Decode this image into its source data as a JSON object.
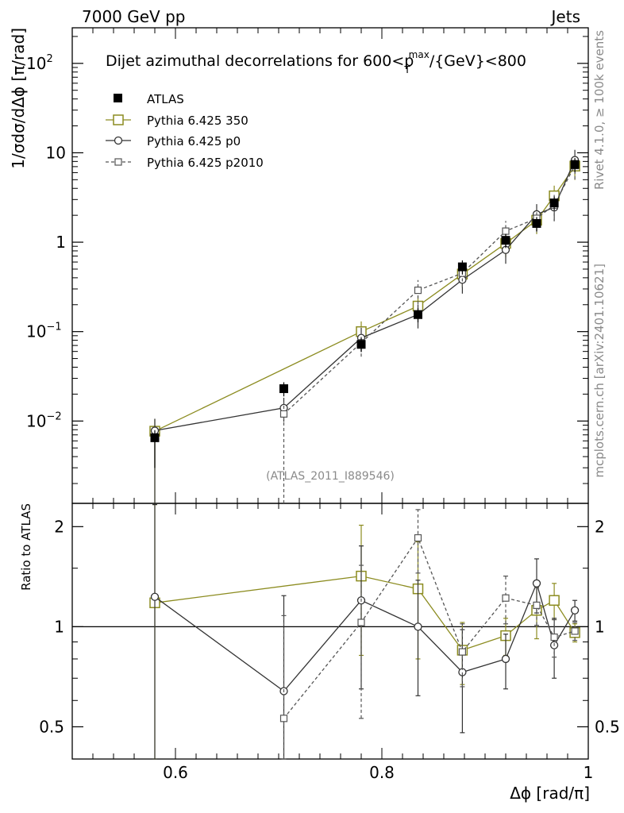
{
  "header": {
    "left": "7000 GeV pp",
    "right": "Jets"
  },
  "side_labels": {
    "rivet": "Rivet 4.1.0, ≥ 100k events",
    "mcplots": "mcplots.cern.ch [arXiv:2401.10621]"
  },
  "watermark": "(ATLAS_2011_I889546)",
  "chart_data": [
    {
      "type": "scatter",
      "panel": "main",
      "title": "Dijet azimuthal decorrelations for 600<p_T^max/{GeV}<800",
      "title_parts": {
        "pre": "Dijet azimuthal decorrelations for 600<p",
        "sub": "T",
        "sup": "max",
        "post": "/{GeV}<800"
      },
      "ylabel": "1/σdσ/dΔϕ [π/rad]",
      "yscale": "log",
      "ylim": [
        0.0012,
        250
      ],
      "xlim": [
        0.5,
        1.0
      ],
      "y_ticks": [
        {
          "value": 0.01,
          "label": "10",
          "exp": "−2"
        },
        {
          "value": 0.1,
          "label": "10",
          "exp": "−1"
        },
        {
          "value": 1,
          "label": "1",
          "exp": ""
        },
        {
          "value": 10,
          "label": "10",
          "exp": ""
        },
        {
          "value": 100,
          "label": "10",
          "exp": "2"
        }
      ],
      "x": [
        0.58,
        0.705,
        0.78,
        0.835,
        0.878,
        0.92,
        0.95,
        0.967,
        0.987
      ],
      "series": [
        {
          "name": "ATLAS",
          "style": "data",
          "color": "#000000",
          "values": [
            0.0065,
            0.023,
            0.072,
            0.155,
            0.53,
            1.05,
            1.62,
            2.75,
            7.4
          ]
        },
        {
          "name": "Pythia 6.425 350",
          "style": "square-solid",
          "color": "#8c8c20",
          "values": [
            0.0077,
            null,
            0.1,
            0.193,
            0.44,
            0.97,
            1.76,
            3.3,
            7.1
          ]
        },
        {
          "name": "Pythia 6.425 p0",
          "style": "circle-solid",
          "color": "#333333",
          "values": [
            0.0078,
            0.014,
            0.085,
            0.155,
            0.38,
            0.82,
            2.05,
            2.45,
            8.3
          ]
        },
        {
          "name": "Pythia 6.425 p2010",
          "style": "square-dashed",
          "color": "#555555",
          "values": [
            null,
            0.012,
            0.075,
            0.29,
            0.45,
            1.33,
            1.85,
            2.6,
            7.2
          ]
        }
      ]
    },
    {
      "type": "scatter",
      "panel": "ratio",
      "ylabel": "Ratio to ATLAS",
      "yscale": "log",
      "ylim": [
        0.4,
        2.35
      ],
      "xlabel": "Δϕ [rad/π]",
      "x_ticks": [
        {
          "value": 0.6,
          "label": "0.6"
        },
        {
          "value": 0.8,
          "label": "0.8"
        },
        {
          "value": 1.0,
          "label": "1"
        }
      ],
      "y_ticks": [
        {
          "value": 0.5,
          "label": "0.5"
        },
        {
          "value": 1,
          "label": "1"
        },
        {
          "value": 2,
          "label": "2"
        }
      ],
      "x": [
        0.58,
        0.705,
        0.78,
        0.835,
        0.878,
        0.92,
        0.95,
        0.967,
        0.987
      ],
      "series": [
        {
          "name": "Pythia 6.425 350",
          "style": "square-solid",
          "color": "#8c8c20",
          "values": [
            1.18,
            null,
            1.42,
            1.3,
            0.85,
            0.94,
            1.12,
            1.2,
            0.96
          ],
          "err": [
            1.15,
            null,
            0.6,
            0.5,
            0.18,
            0.12,
            0.2,
            0.15,
            0.06
          ]
        },
        {
          "name": "Pythia 6.425 p0",
          "style": "circle-solid",
          "color": "#333333",
          "values": [
            1.23,
            0.64,
            1.2,
            1.0,
            0.73,
            0.8,
            1.35,
            0.88,
            1.12
          ],
          "err": [
            1.1,
            0.6,
            0.55,
            0.38,
            0.25,
            0.15,
            0.25,
            0.18,
            0.08
          ]
        },
        {
          "name": "Pythia 6.425 p2010",
          "style": "square-dashed",
          "color": "#555555",
          "values": [
            null,
            0.53,
            1.03,
            1.85,
            0.84,
            1.22,
            1.16,
            0.93,
            0.97
          ],
          "err": [
            null,
            0.55,
            0.5,
            0.4,
            0.18,
            0.2,
            0.15,
            0.12,
            0.06
          ]
        }
      ]
    }
  ]
}
